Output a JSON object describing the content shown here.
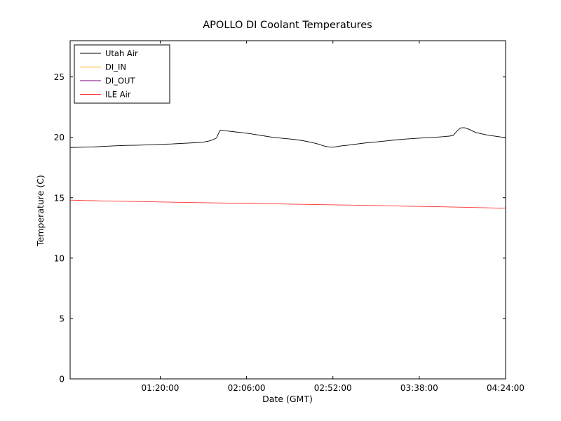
{
  "chart_data": {
    "type": "line",
    "title": "APOLLO DI Coolant Temperatures",
    "xlabel": "Date (GMT)",
    "ylabel": "Temperature (C)",
    "ylim": [
      0,
      28
    ],
    "yticks": [
      0,
      5,
      10,
      15,
      20,
      25
    ],
    "xlim_minutes": [
      32,
      264
    ],
    "xticks": [
      {
        "minutes": 80,
        "label": "01:20:00"
      },
      {
        "minutes": 126,
        "label": "02:06:00"
      },
      {
        "minutes": 172,
        "label": "02:52:00"
      },
      {
        "minutes": 218,
        "label": "03:38:00"
      },
      {
        "minutes": 264,
        "label": "04:24:00"
      }
    ],
    "grid": false,
    "legend_position": "upper left",
    "series": [
      {
        "name": "Utah Air",
        "color": "#000000",
        "x": [
          32,
          38,
          44,
          50,
          56,
          62,
          68,
          74,
          80,
          86,
          92,
          98,
          103,
          106,
          108,
          110,
          111,
          112,
          114,
          117,
          120,
          124,
          128,
          132,
          136,
          140,
          145,
          150,
          155,
          160,
          164,
          167,
          169,
          171,
          173,
          176,
          180,
          185,
          190,
          195,
          200,
          205,
          210,
          215,
          220,
          226,
          230,
          234,
          236,
          238,
          240,
          242,
          244,
          246,
          248,
          251,
          254,
          257,
          260,
          262,
          264
        ],
        "y": [
          19.15,
          19.18,
          19.2,
          19.25,
          19.3,
          19.33,
          19.35,
          19.38,
          19.42,
          19.45,
          19.5,
          19.55,
          19.6,
          19.7,
          19.8,
          19.95,
          20.3,
          20.6,
          20.55,
          20.5,
          20.45,
          20.38,
          20.3,
          20.2,
          20.1,
          20.0,
          19.92,
          19.85,
          19.75,
          19.6,
          19.45,
          19.3,
          19.22,
          19.18,
          19.2,
          19.28,
          19.35,
          19.45,
          19.55,
          19.62,
          19.7,
          19.78,
          19.85,
          19.9,
          19.95,
          20.0,
          20.05,
          20.1,
          20.15,
          20.5,
          20.78,
          20.8,
          20.7,
          20.55,
          20.4,
          20.3,
          20.2,
          20.12,
          20.06,
          20.02,
          20.0
        ]
      },
      {
        "name": "DI_IN",
        "color": "#ffa500",
        "x": [],
        "y": []
      },
      {
        "name": "DI_OUT",
        "color": "#800080",
        "x": [],
        "y": []
      },
      {
        "name": "ILE Air",
        "color": "#ff3030",
        "x": [
          32,
          50,
          70,
          90,
          110,
          130,
          150,
          170,
          190,
          210,
          230,
          245,
          255,
          262,
          264
        ],
        "y": [
          14.8,
          14.73,
          14.68,
          14.62,
          14.57,
          14.52,
          14.47,
          14.42,
          14.37,
          14.3,
          14.25,
          14.2,
          14.16,
          14.12,
          14.15
        ]
      }
    ]
  }
}
